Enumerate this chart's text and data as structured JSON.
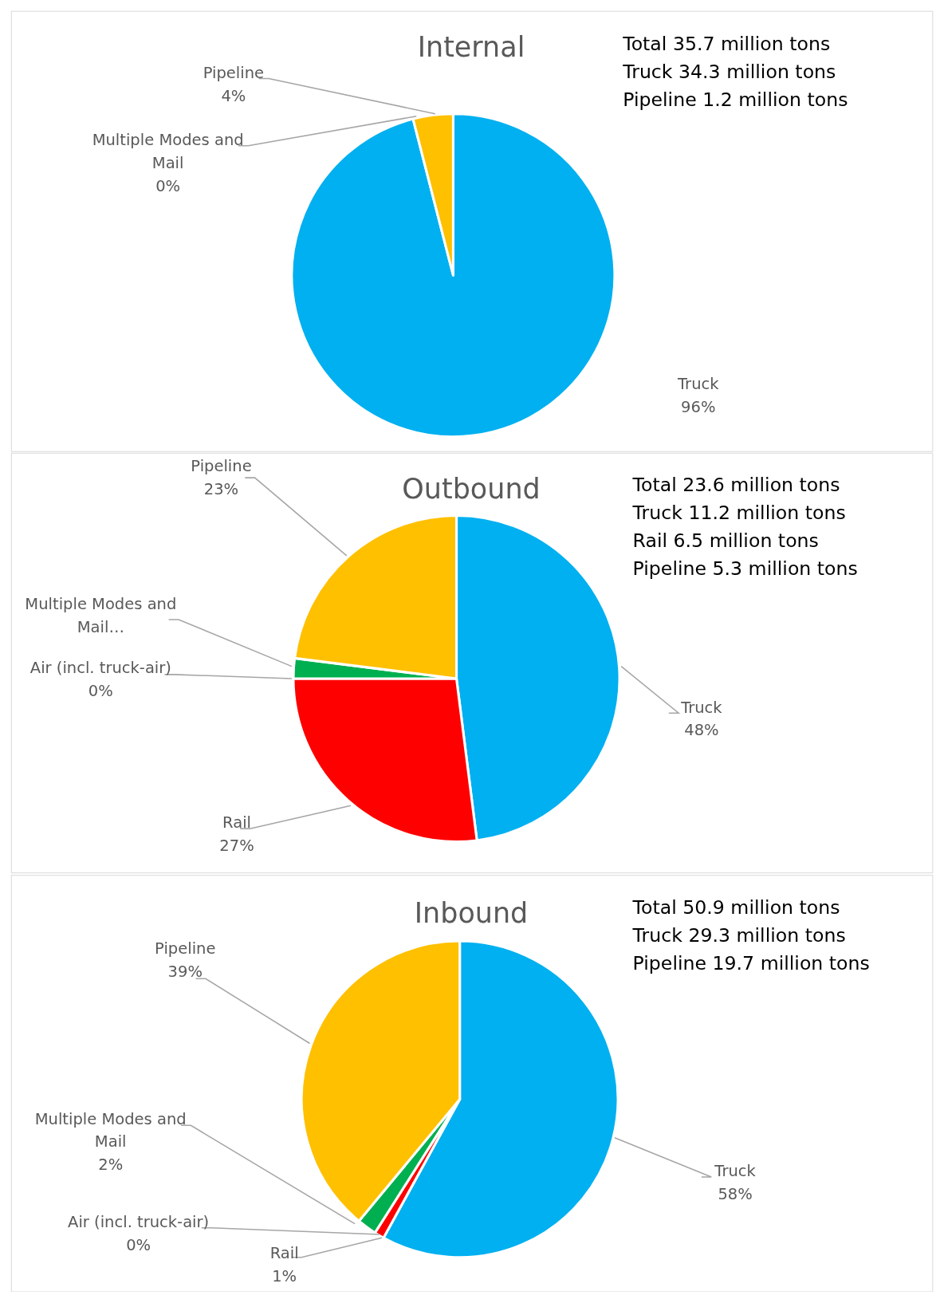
{
  "chart_data": [
    {
      "type": "pie",
      "title": "Internal",
      "categories": [
        "Truck",
        "Multiple Modes and Mail",
        "Pipeline"
      ],
      "values": [
        96,
        0,
        4
      ],
      "colors": [
        "#00b0f0",
        null,
        "#ffc000"
      ],
      "value_labels": [
        "96%",
        "0%",
        "4%"
      ],
      "annotations": [
        "Total 35.7 million tons",
        "Truck 34.3 million tons",
        "Pipeline 1.2 million tons"
      ]
    },
    {
      "type": "pie",
      "title": "Outbound",
      "categories": [
        "Truck",
        "Rail",
        "Air (incl. truck-air)",
        "Multiple Modes and Mail…",
        "Pipeline"
      ],
      "values": [
        48,
        27,
        0,
        2,
        23
      ],
      "colors": [
        "#00b0f0",
        "#ff0000",
        null,
        "#00b050",
        "#ffc000"
      ],
      "value_labels": [
        "48%",
        "27%",
        "0%",
        null,
        "23%"
      ],
      "annotations": [
        "Total 23.6 million tons",
        "Truck 11.2 million tons",
        "Rail 6.5 million tons",
        "Pipeline 5.3 million tons"
      ]
    },
    {
      "type": "pie",
      "title": "Inbound",
      "categories": [
        "Truck",
        "Rail",
        "Air (incl. truck-air)",
        "Multiple Modes and Mail",
        "Pipeline"
      ],
      "values": [
        58,
        1,
        0,
        2,
        39
      ],
      "colors": [
        "#00b0f0",
        "#ff0000",
        null,
        "#00b050",
        "#ffc000"
      ],
      "value_labels": [
        "58%",
        "1%",
        "0%",
        "2%",
        "39%"
      ],
      "annotations": [
        "Total 50.9 million tons",
        "Truck 29.3 million tons",
        "Pipeline 19.7 million tons"
      ]
    }
  ]
}
